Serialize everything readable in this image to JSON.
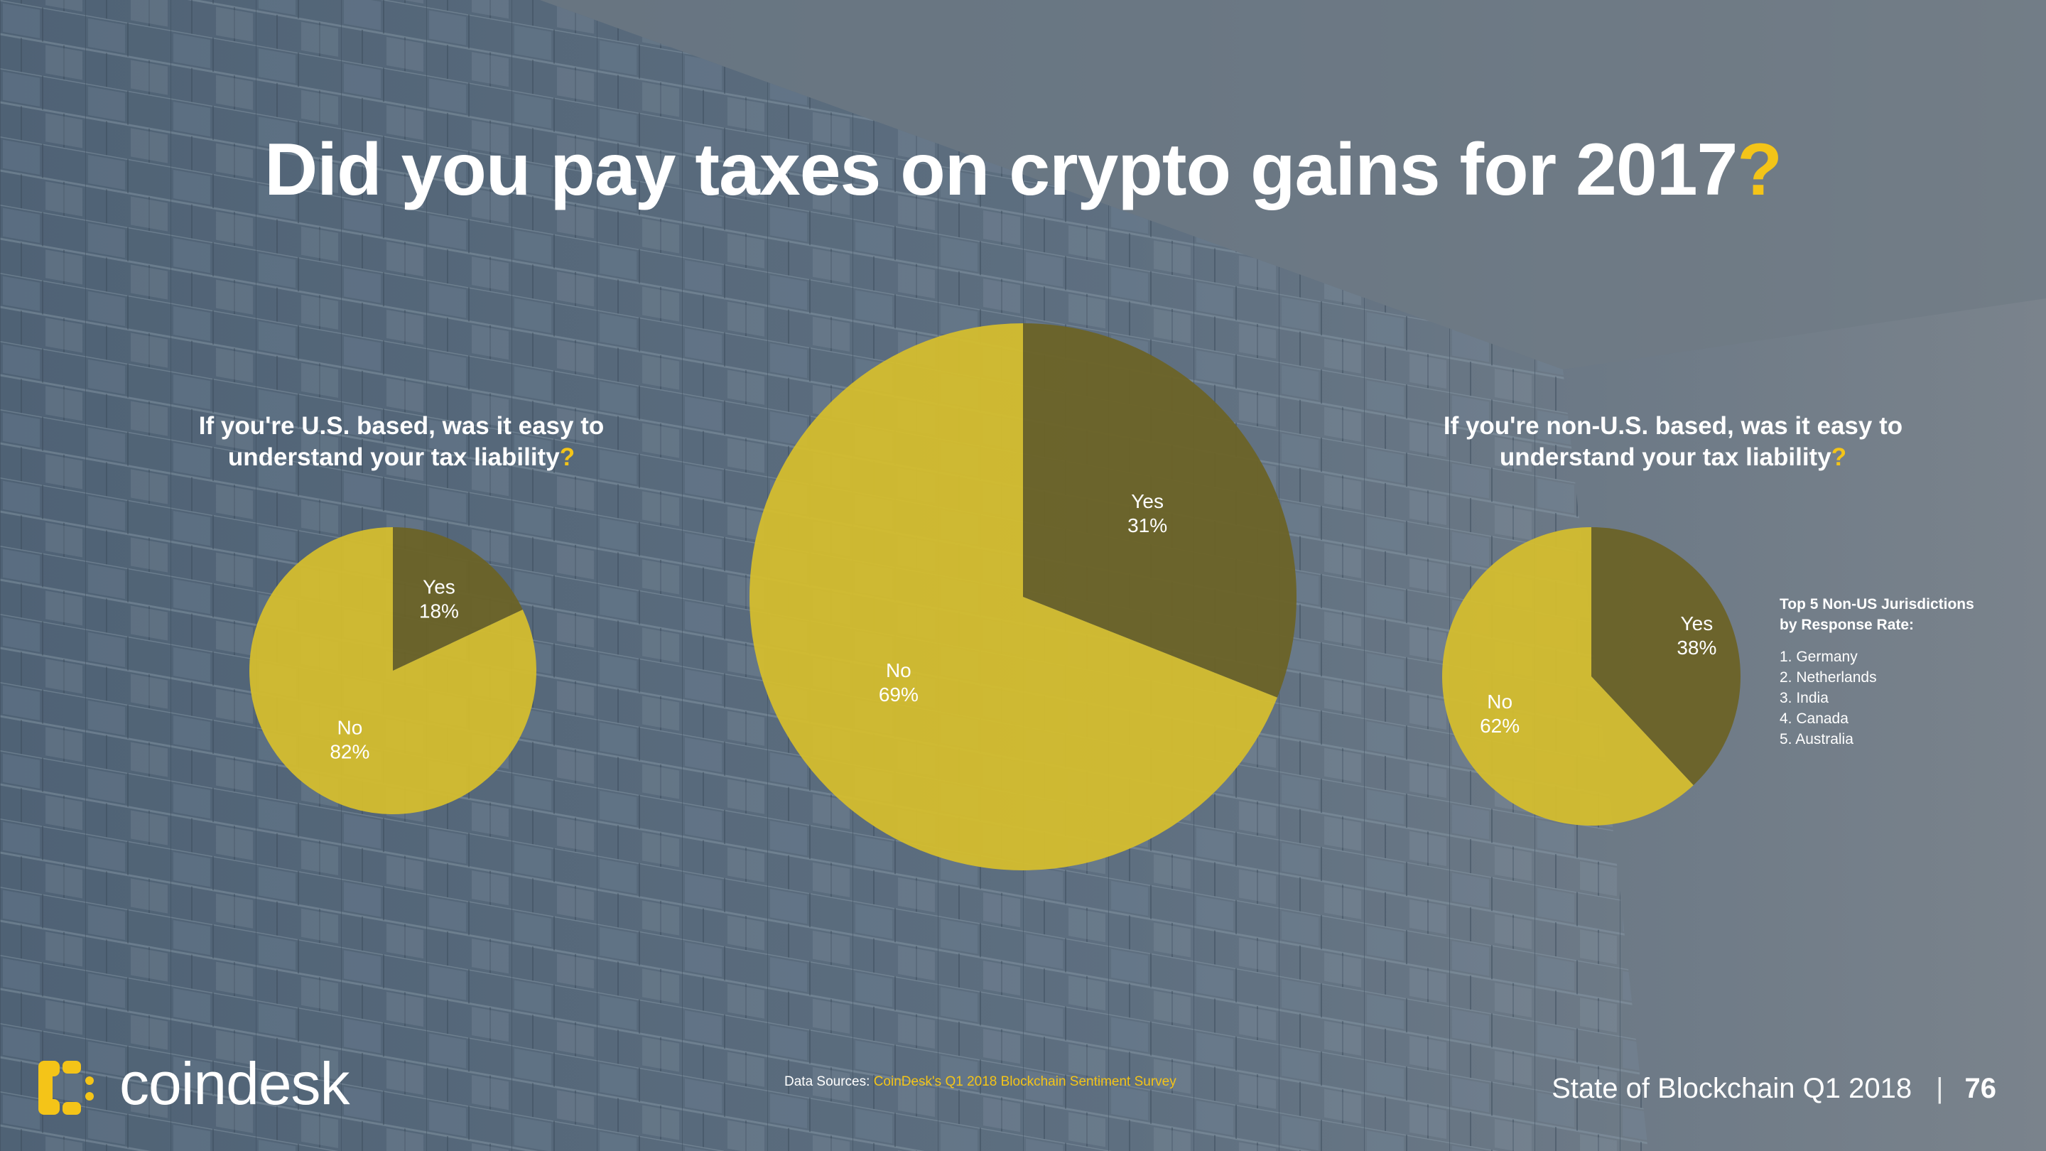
{
  "title": {
    "text": "Did you pay taxes on crypto gains for 2017",
    "mark": "?"
  },
  "subtitles": {
    "left": {
      "line1": "If you're U.S. based, was it easy to",
      "line2": "understand your tax liability",
      "mark": "?"
    },
    "right": {
      "line1": "If you're non-U.S. based, was it easy to",
      "line2": "understand your tax liability",
      "mark": "?"
    }
  },
  "chart_data": [
    {
      "type": "pie",
      "title": "If you're U.S. based, was it easy to understand your tax liability?",
      "slices": [
        {
          "label": "Yes",
          "value": 18,
          "display": "18%",
          "color": "#6c6327"
        },
        {
          "label": "No",
          "value": 82,
          "display": "82%",
          "color": "#d4bd2e"
        }
      ]
    },
    {
      "type": "pie",
      "title": "Did you pay taxes on crypto gains for 2017?",
      "slices": [
        {
          "label": "Yes",
          "value": 31,
          "display": "31%",
          "color": "#6c6327"
        },
        {
          "label": "No",
          "value": 69,
          "display": "69%",
          "color": "#d4bd2e"
        }
      ]
    },
    {
      "type": "pie",
      "title": "If you're non-U.S. based, was it easy to understand your tax liability?",
      "slices": [
        {
          "label": "Yes",
          "value": 38,
          "display": "38%",
          "color": "#6c6327"
        },
        {
          "label": "No",
          "value": 62,
          "display": "62%",
          "color": "#d4bd2e"
        }
      ]
    }
  ],
  "jurisdictions": {
    "title_line1": "Top 5 Non-US Jurisdictions",
    "title_line2": "by Response Rate:",
    "items": [
      "1. Germany",
      "2. Netherlands",
      "3. India",
      "4. Canada",
      "5. Australia"
    ]
  },
  "logo": {
    "text": "coindesk",
    "color": "#f4c418"
  },
  "source": {
    "label": "Data Sources:",
    "link": "CoinDesk's Q1 2018 Blockchain Sentiment Survey"
  },
  "footer": {
    "report": "State of Blockchain Q1 2018",
    "separator": "|",
    "page": "76"
  },
  "colors": {
    "accent": "#f4c418",
    "background": "#687582"
  }
}
